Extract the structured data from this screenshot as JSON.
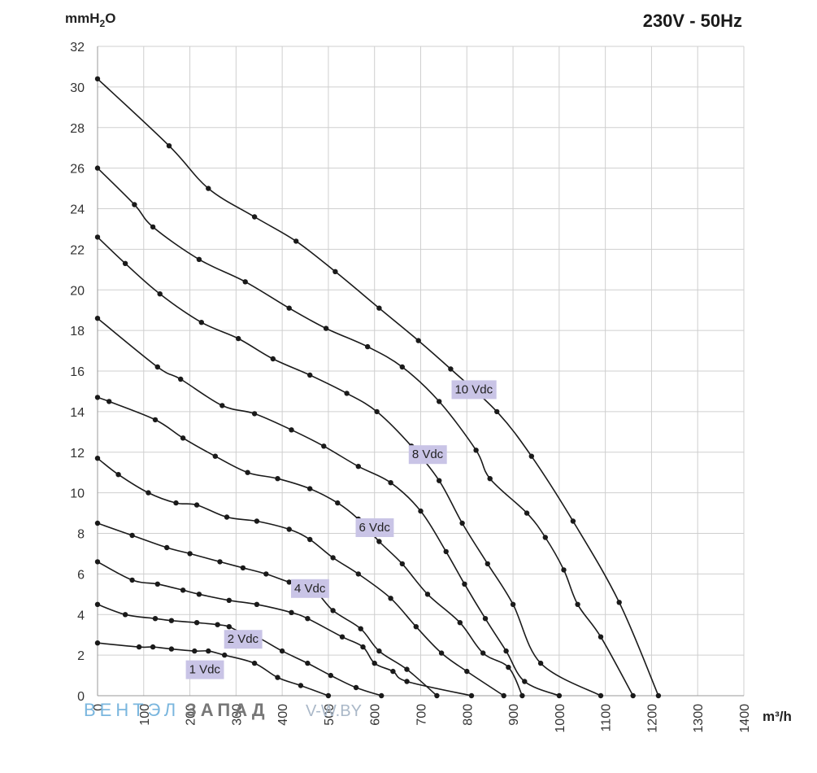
{
  "chart_data": {
    "type": "line",
    "title": "230V - 50Hz",
    "xlabel": "m³/h",
    "ylabel_main": "mmH",
    "ylabel_sub": "2",
    "ylabel_tail": "O",
    "xlim": [
      0,
      1400
    ],
    "ylim": [
      0,
      32
    ],
    "x_ticks": [
      "0",
      "100",
      "200",
      "300",
      "400",
      "500",
      "600",
      "700",
      "800",
      "900",
      "1000",
      "1100",
      "1200",
      "1300",
      "1400"
    ],
    "y_ticks": [
      "0",
      "2",
      "4",
      "6",
      "8",
      "10",
      "12",
      "14",
      "16",
      "18",
      "20",
      "22",
      "24",
      "26",
      "28",
      "30",
      "32"
    ],
    "grid": true,
    "series": [
      {
        "name": "10 Vdc",
        "label_at": [
          815,
          15.1
        ],
        "points": [
          [
            0,
            30.4
          ],
          [
            155,
            27.1
          ],
          [
            240,
            25.0
          ],
          [
            340,
            23.6
          ],
          [
            430,
            22.4
          ],
          [
            515,
            20.9
          ],
          [
            610,
            19.1
          ],
          [
            695,
            17.5
          ],
          [
            765,
            16.1
          ],
          [
            865,
            14.0
          ],
          [
            940,
            11.8
          ],
          [
            1030,
            8.6
          ],
          [
            1130,
            4.6
          ],
          [
            1215,
            0
          ]
        ]
      },
      {
        "name": "8 Vdc",
        "label_at": [
          715,
          11.9
        ],
        "points": [
          [
            0,
            26.0
          ],
          [
            80,
            24.2
          ],
          [
            120,
            23.1
          ],
          [
            220,
            21.5
          ],
          [
            320,
            20.4
          ],
          [
            415,
            19.1
          ],
          [
            495,
            18.1
          ],
          [
            585,
            17.2
          ],
          [
            660,
            16.2
          ],
          [
            740,
            14.5
          ],
          [
            820,
            12.1
          ],
          [
            850,
            10.7
          ],
          [
            930,
            9.0
          ],
          [
            970,
            7.8
          ],
          [
            1010,
            6.2
          ],
          [
            1040,
            4.5
          ],
          [
            1090,
            2.9
          ],
          [
            1160,
            0
          ]
        ]
      },
      {
        "name": "6 Vdc",
        "label_at": [
          600,
          8.3
        ],
        "points": [
          [
            0,
            22.6
          ],
          [
            60,
            21.3
          ],
          [
            135,
            19.8
          ],
          [
            225,
            18.4
          ],
          [
            305,
            17.6
          ],
          [
            380,
            16.6
          ],
          [
            460,
            15.8
          ],
          [
            540,
            14.9
          ],
          [
            605,
            14.0
          ],
          [
            680,
            12.3
          ],
          [
            740,
            10.6
          ],
          [
            790,
            8.5
          ],
          [
            845,
            6.5
          ],
          [
            900,
            4.5
          ],
          [
            960,
            1.6
          ],
          [
            1090,
            0
          ]
        ]
      },
      {
        "name": "4 Vdc",
        "label_at": [
          460,
          5.3
        ],
        "points": [
          [
            0,
            18.6
          ],
          [
            130,
            16.2
          ],
          [
            180,
            15.6
          ],
          [
            270,
            14.3
          ],
          [
            340,
            13.9
          ],
          [
            420,
            13.1
          ],
          [
            490,
            12.3
          ],
          [
            565,
            11.3
          ],
          [
            635,
            10.5
          ],
          [
            700,
            9.1
          ],
          [
            755,
            7.1
          ],
          [
            795,
            5.5
          ],
          [
            840,
            3.8
          ],
          [
            885,
            2.2
          ],
          [
            925,
            0.7
          ],
          [
            1000,
            0
          ]
        ]
      },
      {
        "name": "2 Vdc",
        "label_at": [
          315,
          2.8
        ],
        "points": [
          [
            0,
            14.7
          ],
          [
            25,
            14.5
          ],
          [
            125,
            13.6
          ],
          [
            185,
            12.7
          ],
          [
            255,
            11.8
          ],
          [
            325,
            11.0
          ],
          [
            390,
            10.7
          ],
          [
            460,
            10.2
          ],
          [
            520,
            9.5
          ],
          [
            565,
            8.7
          ],
          [
            610,
            7.6
          ],
          [
            660,
            6.5
          ],
          [
            715,
            5.0
          ],
          [
            785,
            3.6
          ],
          [
            835,
            2.1
          ],
          [
            890,
            1.4
          ],
          [
            920,
            0
          ]
        ]
      },
      {
        "name": "1 Vdc",
        "label_at": [
          232,
          1.3
        ],
        "points": [
          [
            0,
            11.7
          ],
          [
            45,
            10.9
          ],
          [
            110,
            10.0
          ],
          [
            170,
            9.5
          ],
          [
            215,
            9.4
          ],
          [
            280,
            8.8
          ],
          [
            345,
            8.6
          ],
          [
            415,
            8.2
          ],
          [
            460,
            7.7
          ],
          [
            510,
            6.8
          ],
          [
            565,
            6.0
          ],
          [
            635,
            4.8
          ],
          [
            690,
            3.4
          ],
          [
            745,
            2.1
          ],
          [
            800,
            1.2
          ],
          [
            880,
            0
          ]
        ]
      },
      {
        "name": "",
        "points": [
          [
            0,
            8.5
          ],
          [
            75,
            7.9
          ],
          [
            150,
            7.3
          ],
          [
            200,
            7.0
          ],
          [
            265,
            6.6
          ],
          [
            315,
            6.3
          ],
          [
            365,
            6.0
          ],
          [
            415,
            5.6
          ],
          [
            465,
            5.3
          ],
          [
            510,
            4.2
          ],
          [
            570,
            3.3
          ],
          [
            610,
            2.2
          ],
          [
            670,
            1.3
          ],
          [
            735,
            0
          ]
        ]
      },
      {
        "name": "",
        "points": [
          [
            0,
            6.6
          ],
          [
            75,
            5.7
          ],
          [
            130,
            5.5
          ],
          [
            185,
            5.2
          ],
          [
            220,
            5.0
          ],
          [
            285,
            4.7
          ],
          [
            345,
            4.5
          ],
          [
            420,
            4.1
          ],
          [
            455,
            3.8
          ],
          [
            530,
            2.9
          ],
          [
            575,
            2.4
          ],
          [
            600,
            1.6
          ],
          [
            640,
            1.2
          ],
          [
            670,
            0.7
          ],
          [
            810,
            0
          ]
        ]
      },
      {
        "name": "",
        "points": [
          [
            0,
            4.5
          ],
          [
            60,
            4.0
          ],
          [
            125,
            3.8
          ],
          [
            160,
            3.7
          ],
          [
            215,
            3.6
          ],
          [
            260,
            3.5
          ],
          [
            285,
            3.4
          ],
          [
            320,
            3.0
          ],
          [
            345,
            2.9
          ],
          [
            400,
            2.2
          ],
          [
            455,
            1.6
          ],
          [
            505,
            1.0
          ],
          [
            560,
            0.4
          ],
          [
            615,
            0
          ]
        ]
      },
      {
        "name": "",
        "points": [
          [
            0,
            2.6
          ],
          [
            90,
            2.4
          ],
          [
            120,
            2.4
          ],
          [
            160,
            2.3
          ],
          [
            210,
            2.2
          ],
          [
            240,
            2.2
          ],
          [
            275,
            2.0
          ],
          [
            340,
            1.6
          ],
          [
            390,
            0.9
          ],
          [
            440,
            0.5
          ],
          [
            500,
            0
          ]
        ]
      }
    ]
  },
  "watermark": {
    "part1": "ВЕНТЭЛ",
    "part2": "ЗАПАД",
    "part3": "V-W.BY"
  },
  "colors": {
    "grid": "#cfcfcf",
    "axis": "#999999",
    "line": "#1a1a1a",
    "label_bg": "#c9c4e6"
  }
}
